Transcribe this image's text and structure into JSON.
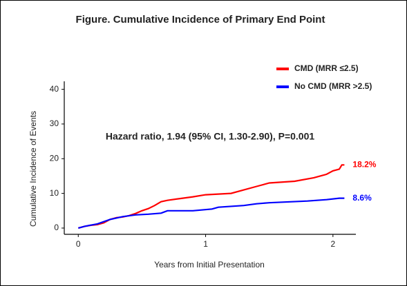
{
  "chart_data": {
    "type": "line",
    "title": "Figure. Cumulative Incidence of Primary End Point",
    "x_label": "Years from Initial Presentation",
    "y_label": "Cumulative Incidence of Events",
    "annotation": "Hazard ratio, 1.94 (95% CI, 1.30-2.90), P=0.001",
    "xlim": [
      -0.11,
      2.18
    ],
    "ylim": [
      -1.8,
      42.3
    ],
    "xticks": [
      0,
      1,
      2
    ],
    "yticks": [
      0,
      10,
      20,
      30,
      40
    ],
    "grid": false,
    "legend": "top-right",
    "series": [
      {
        "name": "CMD (MRR ≤2.5)",
        "color": "#ff0000",
        "x": [
          0,
          0.05,
          0.1,
          0.15,
          0.2,
          0.25,
          0.3,
          0.35,
          0.4,
          0.45,
          0.5,
          0.55,
          0.6,
          0.65,
          0.7,
          0.8,
          0.9,
          1.0,
          1.2,
          1.3,
          1.4,
          1.5,
          1.7,
          1.85,
          1.95,
          2.0,
          2.05,
          2.07,
          2.09
        ],
        "values": [
          0,
          0.5,
          0.8,
          1.0,
          1.5,
          2.5,
          3.0,
          3.2,
          3.6,
          4.2,
          5.0,
          5.6,
          6.5,
          7.6,
          8.0,
          8.5,
          9.0,
          9.6,
          10.0,
          11.0,
          12.0,
          13.0,
          13.5,
          14.5,
          15.5,
          16.5,
          17.0,
          18.2,
          18.2
        ],
        "end_label": {
          "value": 18.2,
          "label": "18.2%"
        }
      },
      {
        "name": "No CMD (MRR >2.5)",
        "color": "#0000ff",
        "x": [
          0,
          0.05,
          0.15,
          0.25,
          0.35,
          0.45,
          0.55,
          0.65,
          0.7,
          0.9,
          1.05,
          1.1,
          1.3,
          1.4,
          1.5,
          1.8,
          1.95,
          2.05,
          2.09
        ],
        "values": [
          0,
          0.5,
          1.2,
          2.5,
          3.3,
          3.8,
          4.0,
          4.3,
          5.0,
          5.0,
          5.5,
          6.0,
          6.5,
          7.0,
          7.3,
          7.8,
          8.2,
          8.6,
          8.6
        ],
        "end_label": {
          "value": 8.6,
          "label": "8.6%"
        }
      }
    ]
  }
}
